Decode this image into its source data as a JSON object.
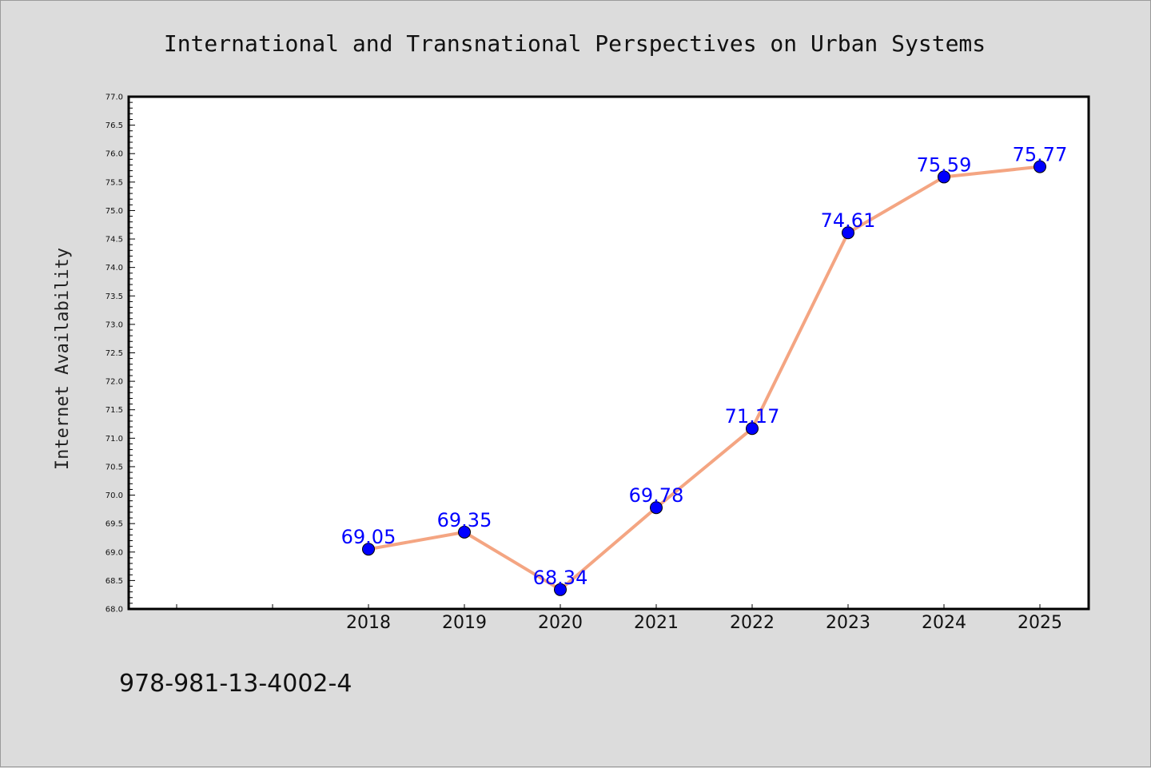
{
  "chart_data": {
    "type": "line",
    "title": "International and Transnational Perspectives on Urban Systems",
    "xlabel": "",
    "ylabel": "Internet Availability",
    "x": [
      "2018",
      "2019",
      "2020",
      "2021",
      "2022",
      "2023",
      "2024",
      "2025"
    ],
    "values": [
      69.05,
      69.35,
      68.34,
      69.78,
      71.17,
      74.61,
      75.59,
      75.77
    ],
    "data_labels": [
      "69.05",
      "69.35",
      "68.34",
      "69.78",
      "71.17",
      "74.61",
      "75.59",
      "75.77"
    ],
    "ylim": [
      68.0,
      77.0
    ],
    "y_ticks": [
      "68.0",
      "68.5",
      "69.0",
      "69.5",
      "70.0",
      "70.5",
      "71.0",
      "71.5",
      "72.0",
      "72.5",
      "73.0",
      "73.5",
      "74.0",
      "74.5",
      "75.0",
      "75.5",
      "76.0",
      "76.5",
      "77.0"
    ],
    "grid": false,
    "legend": "none",
    "colors": {
      "line": "#f4a582",
      "marker": "#0000ff",
      "data_label": "#0000ff"
    }
  },
  "footer": {
    "isbn": "978-981-13-4002-4"
  }
}
